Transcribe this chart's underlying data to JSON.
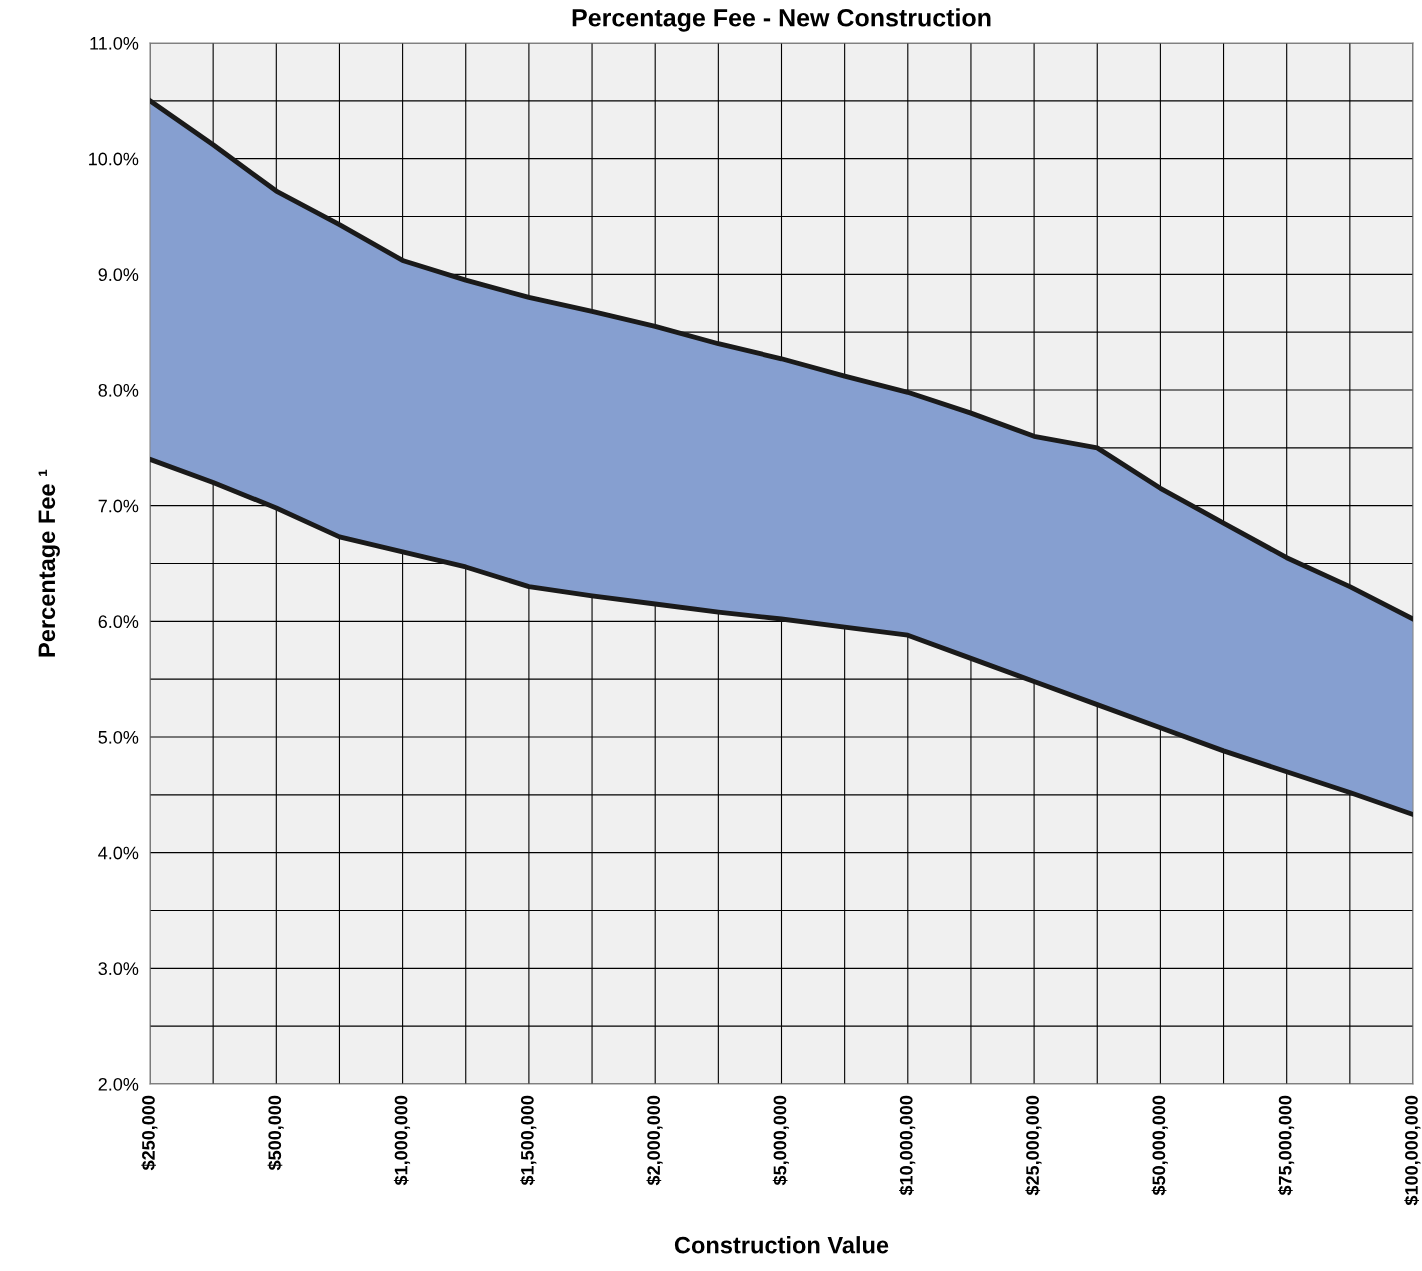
{
  "chart_data": {
    "type": "line",
    "title": "Percentage Fee - New Construction",
    "xlabel": "Construction Value",
    "ylabel": "Percentage Fee ¹",
    "categories": [
      "$250,000",
      null,
      "$500,000",
      null,
      "$1,000,000",
      null,
      "$1,500,000",
      null,
      "$2,000,000",
      null,
      "$5,000,000",
      null,
      "$10,000,000",
      null,
      "$25,000,000",
      null,
      "$50,000,000",
      null,
      "$75,000,000",
      null,
      "$100,000,000"
    ],
    "series": [
      {
        "type": "area",
        "color": "#869fd0",
        "values": [
          10.5,
          10.12,
          9.72,
          9.43,
          9.12,
          8.95,
          8.8,
          8.68,
          8.55,
          8.4,
          8.27,
          8.12,
          7.98,
          7.8,
          7.6,
          7.5,
          7.15,
          6.85,
          6.55,
          6.3,
          6.02
        ]
      },
      {
        "color": "#1a1a1a",
        "values": [
          7.4,
          7.2,
          6.98,
          6.73,
          6.6,
          6.47,
          6.3,
          6.22,
          6.15,
          6.08,
          6.02,
          5.95,
          5.88,
          5.68,
          5.48,
          5.28,
          5.08,
          4.88,
          4.7,
          4.52,
          4.33
        ]
      }
    ],
    "ylim": [
      2,
      11
    ],
    "yticks": [
      {
        "value": 2,
        "label": "2.0%"
      },
      {
        "value": 2.5,
        "label": null
      },
      {
        "value": 3,
        "label": "3.0%"
      },
      {
        "value": 3.5,
        "label": null
      },
      {
        "value": 4,
        "label": "4.0%"
      },
      {
        "value": 4.5,
        "label": null
      },
      {
        "value": 5,
        "label": "5.0%"
      },
      {
        "value": 5.5,
        "label": null
      },
      {
        "value": 6,
        "label": "6.0%"
      },
      {
        "value": 6.5,
        "label": null
      },
      {
        "value": 7,
        "label": "7.0%"
      },
      {
        "value": 7.5,
        "label": null
      },
      {
        "value": 8,
        "label": "8.0%"
      },
      {
        "value": 8.5,
        "label": null
      },
      {
        "value": 9,
        "label": "9.0%"
      },
      {
        "value": 9.5,
        "label": null
      },
      {
        "value": 10,
        "label": "10.0%"
      },
      {
        "value": 10.5,
        "label": null
      },
      {
        "value": 11,
        "label": "11.0%"
      }
    ],
    "grid": true,
    "legend": false,
    "marker": "none",
    "line_style": "solid"
  }
}
